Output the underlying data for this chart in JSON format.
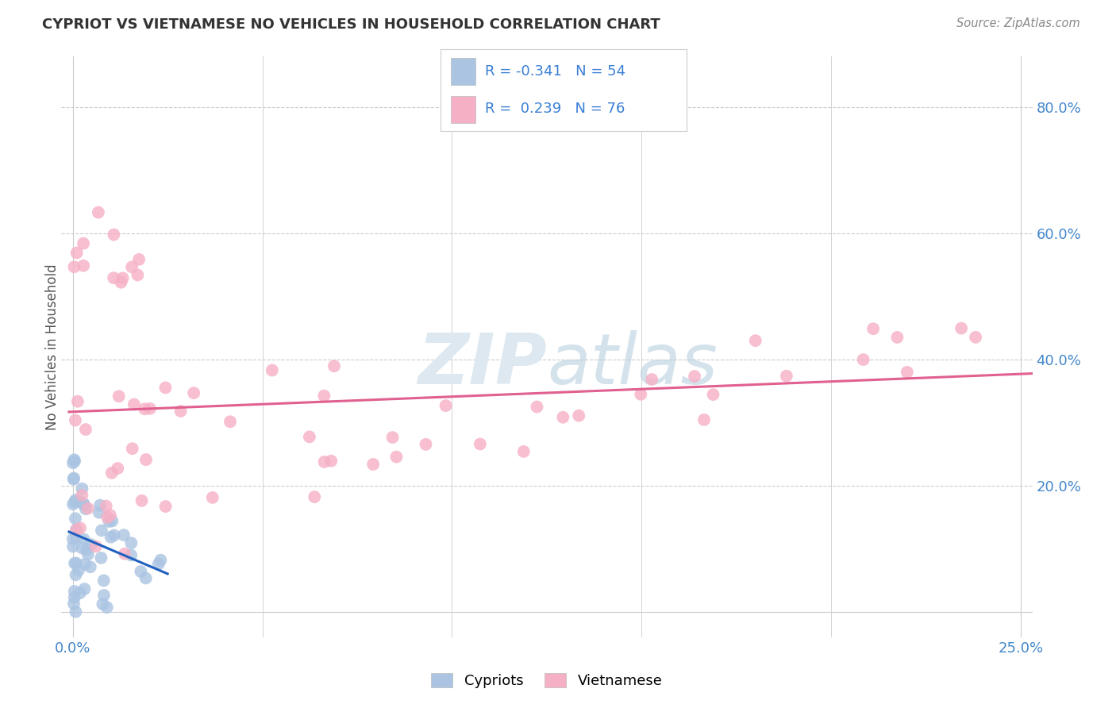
{
  "title": "CYPRIOT VS VIETNAMESE NO VEHICLES IN HOUSEHOLD CORRELATION CHART",
  "source": "Source: ZipAtlas.com",
  "ylabel": "No Vehicles in Household",
  "ytick_labels": [
    "20.0%",
    "40.0%",
    "60.0%",
    "80.0%"
  ],
  "ytick_values": [
    0.2,
    0.4,
    0.6,
    0.8
  ],
  "xlim": [
    -0.003,
    0.253
  ],
  "ylim": [
    -0.04,
    0.88
  ],
  "cypriot_R": -0.341,
  "cypriot_N": 54,
  "vietnamese_R": 0.239,
  "vietnamese_N": 76,
  "cypriot_color": "#aac4e2",
  "cypriot_edge_color": "#aac4e2",
  "cypriot_line_color": "#2060c0",
  "vietnamese_color": "#f5b0c5",
  "vietnamese_edge_color": "#f5b0c5",
  "vietnamese_line_color": "#e06090",
  "background_color": "#ffffff",
  "grid_color": "#cccccc",
  "watermark_color": "#dde8f0",
  "legend_label_1": "Cypriots",
  "legend_label_2": "Vietnamese",
  "title_color": "#333333",
  "source_color": "#888888",
  "tick_color": "#4488cc",
  "ylabel_color": "#555555"
}
